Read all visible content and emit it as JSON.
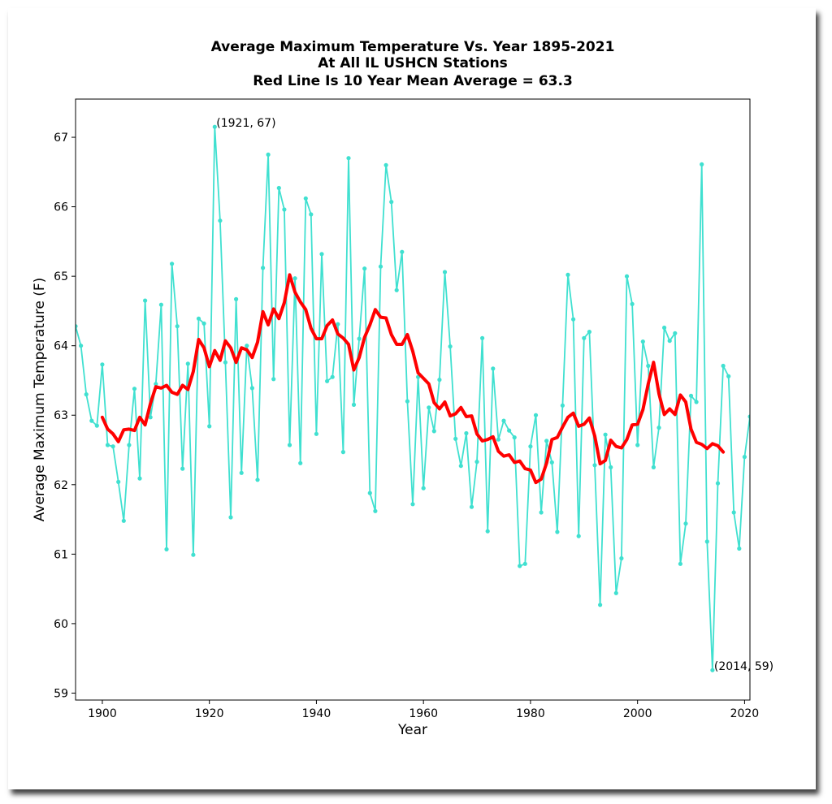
{
  "chart_data": {
    "type": "line",
    "title_lines": [
      "Average Maximum Temperature Vs. Year 1895-2021",
      "At All IL USHCN Stations",
      "Red Line Is 10 Year Mean  Average = 63.3"
    ],
    "xlabel": "Year",
    "ylabel": "Average Maximum Temperature (F)",
    "xlim": [
      1895,
      2021
    ],
    "ylim": [
      58.9,
      67.55
    ],
    "xticks": [
      1900,
      1920,
      1940,
      1960,
      1980,
      2000,
      2020
    ],
    "yticks": [
      59,
      60,
      61,
      62,
      63,
      64,
      65,
      66,
      67
    ],
    "grid": false,
    "series": [
      {
        "color": "#40e0d0",
        "x": [
          1895,
          1896,
          1897,
          1898,
          1899,
          1900,
          1901,
          1902,
          1903,
          1904,
          1905,
          1906,
          1907,
          1908,
          1909,
          1910,
          1911,
          1912,
          1913,
          1914,
          1915,
          1916,
          1917,
          1918,
          1919,
          1920,
          1921,
          1922,
          1923,
          1924,
          1925,
          1926,
          1927,
          1928,
          1929,
          1930,
          1931,
          1932,
          1933,
          1934,
          1935,
          1936,
          1937,
          1938,
          1939,
          1940,
          1941,
          1942,
          1943,
          1944,
          1945,
          1946,
          1947,
          1948,
          1949,
          1950,
          1951,
          1952,
          1953,
          1954,
          1955,
          1956,
          1957,
          1958,
          1959,
          1960,
          1961,
          1962,
          1963,
          1964,
          1965,
          1966,
          1967,
          1968,
          1969,
          1970,
          1971,
          1972,
          1973,
          1974,
          1975,
          1976,
          1977,
          1978,
          1979,
          1980,
          1981,
          1982,
          1983,
          1984,
          1985,
          1986,
          1987,
          1988,
          1989,
          1990,
          1991,
          1992,
          1993,
          1994,
          1995,
          1996,
          1997,
          1998,
          1999,
          2000,
          2001,
          2002,
          2003,
          2004,
          2005,
          2006,
          2007,
          2008,
          2009,
          2010,
          2011,
          2012,
          2013,
          2014,
          2015,
          2016,
          2017,
          2018,
          2019,
          2020,
          2021
        ],
        "values": [
          64.28,
          64.0,
          63.3,
          62.92,
          62.85,
          63.73,
          62.57,
          62.55,
          62.04,
          61.48,
          62.57,
          63.38,
          62.09,
          64.65,
          62.97,
          63.45,
          64.59,
          61.07,
          65.18,
          64.28,
          62.23,
          63.74,
          60.99,
          64.39,
          64.32,
          62.84,
          67.15,
          65.8,
          63.76,
          61.53,
          64.67,
          62.17,
          64.0,
          63.39,
          62.07,
          65.12,
          66.75,
          63.52,
          66.27,
          65.96,
          62.57,
          64.97,
          62.31,
          66.12,
          65.89,
          62.73,
          65.32,
          63.49,
          63.55,
          64.31,
          62.47,
          66.7,
          63.15,
          64.1,
          65.11,
          61.88,
          61.62,
          65.14,
          66.6,
          66.07,
          64.8,
          65.35,
          63.2,
          61.72,
          63.55,
          61.95,
          63.11,
          62.77,
          63.51,
          65.06,
          63.99,
          62.66,
          62.27,
          62.74,
          61.68,
          62.33,
          64.11,
          61.33,
          63.67,
          62.65,
          62.92,
          62.78,
          62.68,
          60.83,
          60.86,
          62.55,
          63.0,
          61.6,
          62.63,
          62.32,
          61.32,
          63.14,
          65.02,
          64.38,
          61.26,
          64.11,
          64.2,
          62.28,
          60.27,
          62.72,
          62.25,
          60.44,
          60.94,
          65.0,
          64.6,
          62.57,
          64.06,
          63.71,
          62.25,
          62.82,
          64.26,
          64.07,
          64.18,
          60.86,
          61.44,
          63.28,
          63.19,
          66.61,
          61.18,
          59.33,
          62.02,
          63.71,
          63.56,
          61.6,
          61.08,
          62.4,
          62.98
        ]
      },
      {
        "color": "#ff0000",
        "x": [
          1900,
          1901,
          1902,
          1903,
          1904,
          1905,
          1906,
          1907,
          1908,
          1909,
          1910,
          1911,
          1912,
          1913,
          1914,
          1915,
          1916,
          1917,
          1918,
          1919,
          1920,
          1921,
          1922,
          1923,
          1924,
          1925,
          1926,
          1927,
          1928,
          1929,
          1930,
          1931,
          1932,
          1933,
          1934,
          1935,
          1936,
          1937,
          1938,
          1939,
          1940,
          1941,
          1942,
          1943,
          1944,
          1945,
          1946,
          1947,
          1948,
          1949,
          1950,
          1951,
          1952,
          1953,
          1954,
          1955,
          1956,
          1957,
          1958,
          1959,
          1960,
          1961,
          1962,
          1963,
          1964,
          1965,
          1966,
          1967,
          1968,
          1969,
          1970,
          1971,
          1972,
          1973,
          1974,
          1975,
          1976,
          1977,
          1978,
          1979,
          1980,
          1981,
          1982,
          1983,
          1984,
          1985,
          1986,
          1987,
          1988,
          1989,
          1990,
          1991,
          1992,
          1993,
          1994,
          1995,
          1996,
          1997,
          1998,
          1999,
          2000,
          2001,
          2002,
          2003,
          2004,
          2005,
          2006,
          2007,
          2008,
          2009,
          2010,
          2011,
          2012,
          2013,
          2014,
          2015,
          2016
        ],
        "values": [
          62.97,
          62.8,
          62.73,
          62.62,
          62.79,
          62.8,
          62.78,
          62.97,
          62.86,
          63.17,
          63.41,
          63.39,
          63.43,
          63.33,
          63.3,
          63.43,
          63.37,
          63.63,
          64.09,
          63.97,
          63.7,
          63.93,
          63.79,
          64.07,
          63.97,
          63.76,
          63.97,
          63.94,
          63.83,
          64.05,
          64.49,
          64.3,
          64.53,
          64.39,
          64.62,
          65.02,
          64.77,
          64.63,
          64.52,
          64.25,
          64.1,
          64.1,
          64.29,
          64.37,
          64.17,
          64.11,
          64.02,
          63.65,
          63.83,
          64.12,
          64.3,
          64.52,
          64.41,
          64.4,
          64.16,
          64.02,
          64.02,
          64.16,
          63.92,
          63.61,
          63.53,
          63.45,
          63.18,
          63.09,
          63.19,
          62.99,
          63.02,
          63.11,
          62.98,
          62.99,
          62.73,
          62.63,
          62.65,
          62.69,
          62.48,
          62.41,
          62.43,
          62.32,
          62.34,
          62.23,
          62.21,
          62.03,
          62.08,
          62.31,
          62.65,
          62.68,
          62.83,
          62.97,
          63.03,
          62.84,
          62.87,
          62.96,
          62.7,
          62.3,
          62.35,
          62.64,
          62.55,
          62.53,
          62.65,
          62.86,
          62.87,
          63.08,
          63.45,
          63.76,
          63.31,
          63.01,
          63.09,
          63.01,
          63.29,
          63.19,
          62.8,
          62.61,
          62.58,
          62.52,
          62.59,
          62.56,
          62.47
        ]
      }
    ],
    "annotations": [
      {
        "text": "(1921, 67)",
        "x": 1921,
        "y": 67.15
      },
      {
        "text": "(2014, 59)",
        "x": 2014,
        "y": 59.33
      }
    ]
  }
}
